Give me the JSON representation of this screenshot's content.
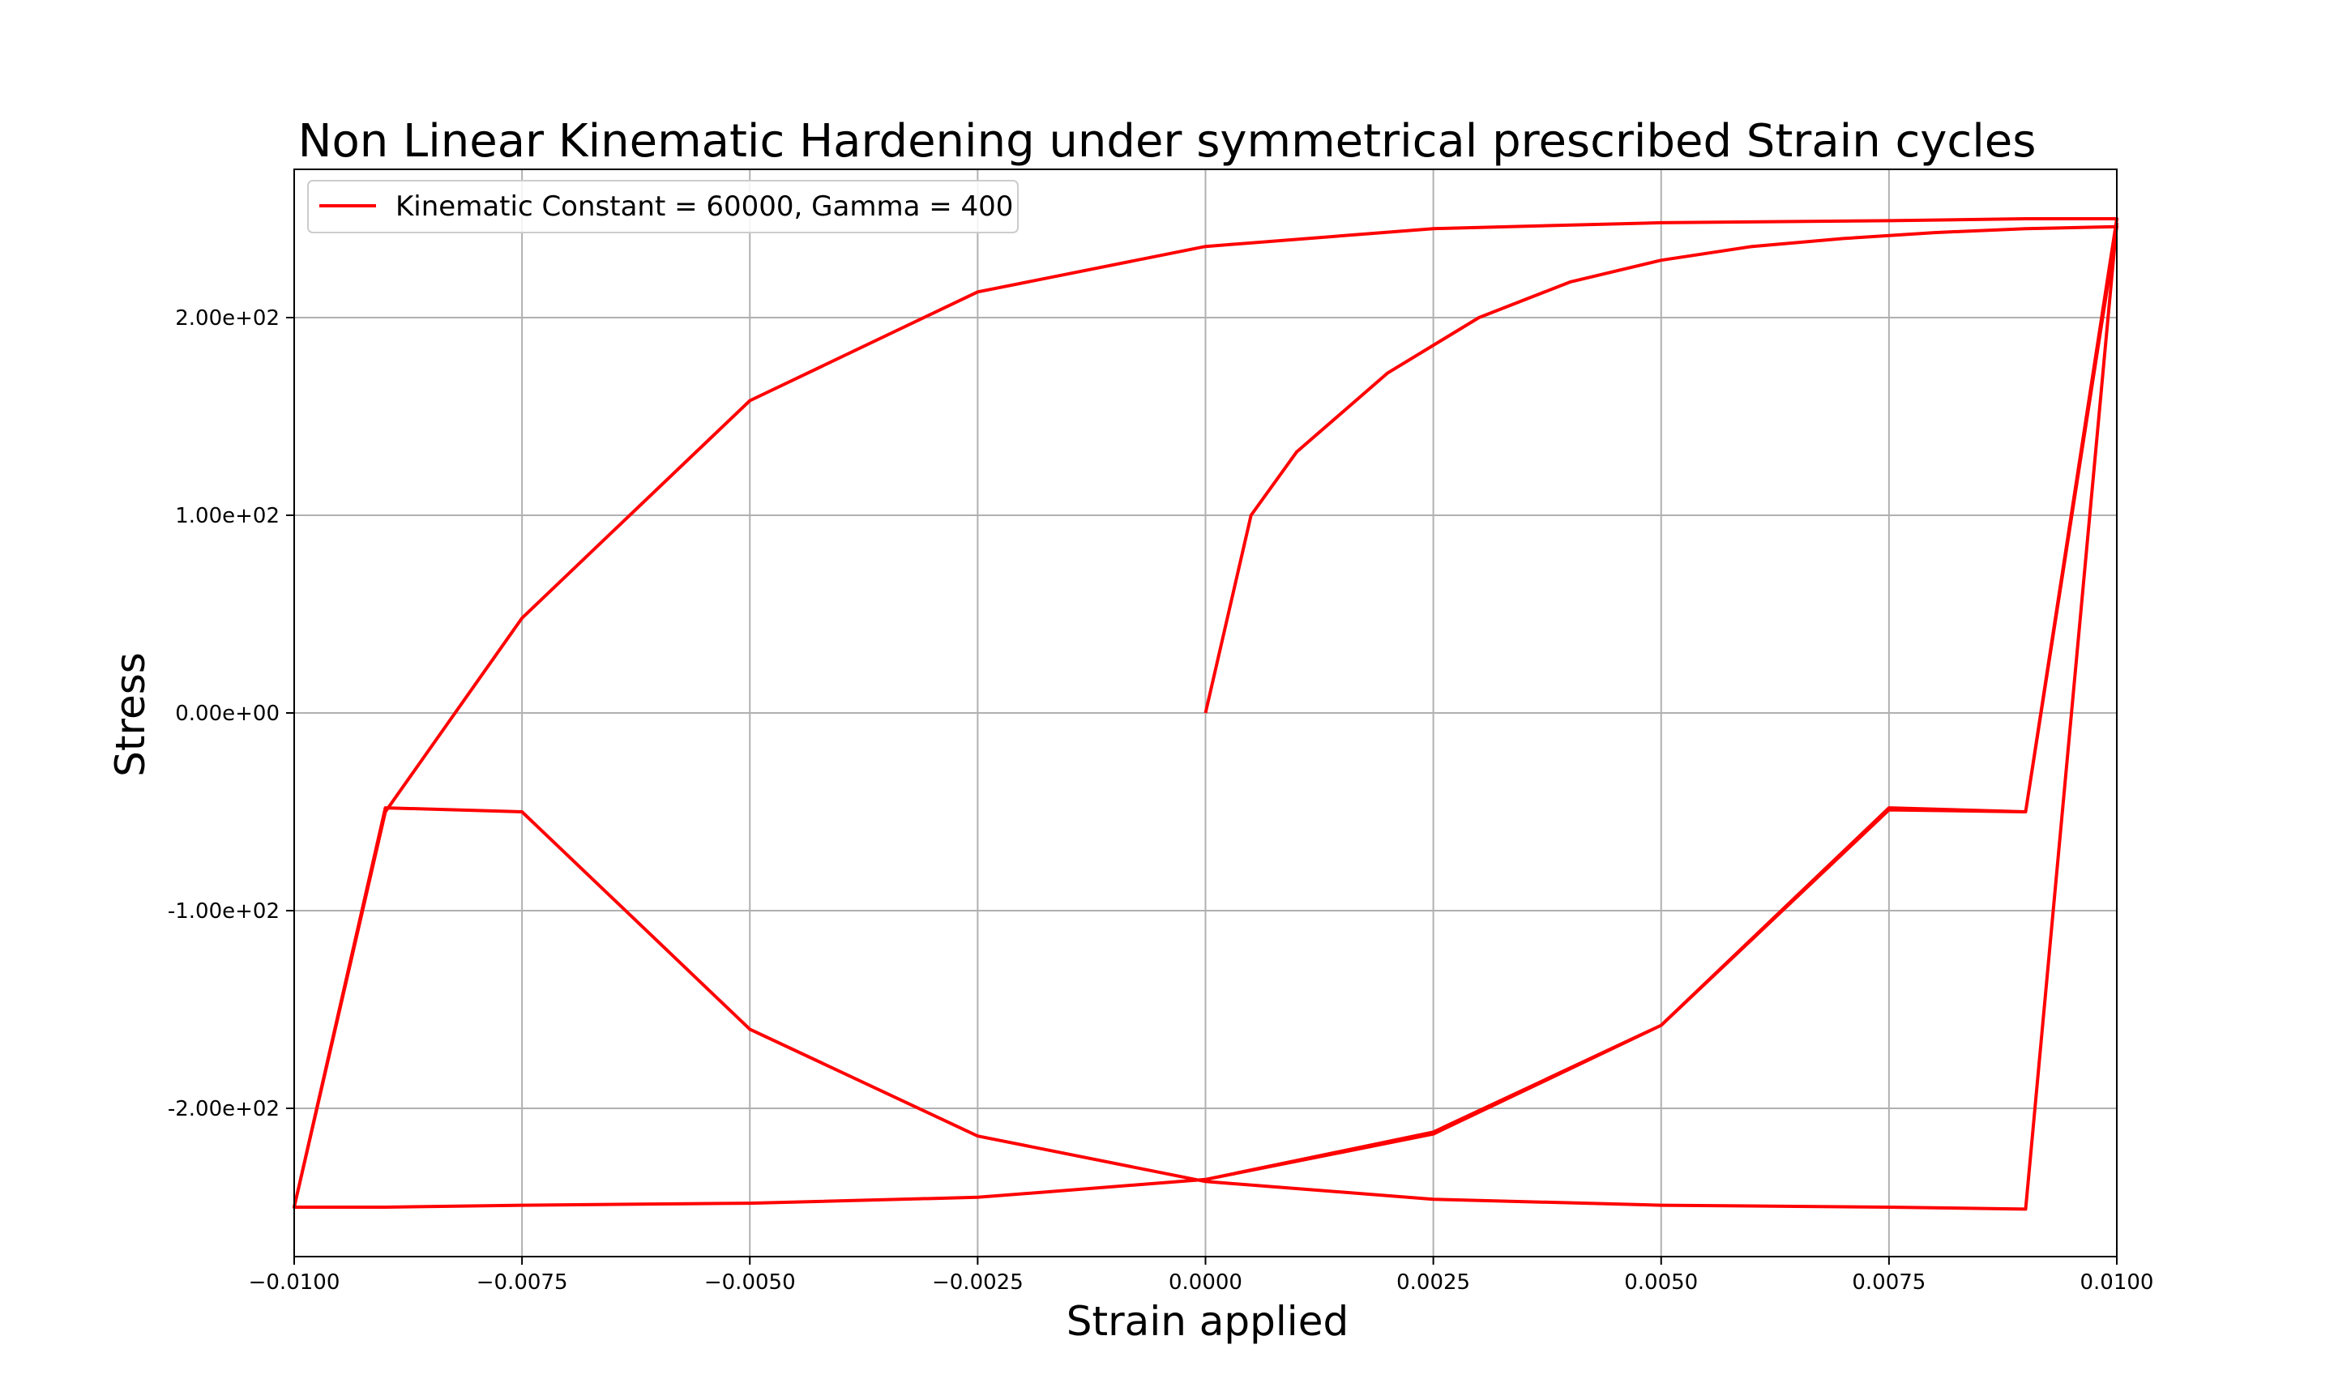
{
  "chart_data": {
    "type": "line",
    "title": "Non Linear Kinematic Hardening under symmetrical prescribed Strain cycles",
    "xlabel": "Strain applied",
    "ylabel": "Stress",
    "xlim": [
      -0.01,
      0.01
    ],
    "ylim": [
      -275,
      275
    ],
    "grid": true,
    "legend_position": "top-left",
    "x_ticks": [
      -0.01,
      -0.0075,
      -0.005,
      -0.0025,
      0.0,
      0.0025,
      0.005,
      0.0075,
      0.01
    ],
    "x_tick_labels": [
      "−0.0100",
      "−0.0075",
      "−0.0050",
      "−0.0025",
      "0.0000",
      "0.0025",
      "0.0050",
      "0.0075",
      "0.0100"
    ],
    "y_ticks": [
      -200,
      -100,
      0,
      100,
      200
    ],
    "y_tick_labels": [
      "-2.00e+02",
      "-1.00e+02",
      "0.00e+00",
      "1.00e+02",
      "2.00e+02"
    ],
    "series": [
      {
        "name": "Kinematic Constant = 60000, Gamma = 400",
        "color": "#ff0000",
        "x": [
          0.0,
          0.0005,
          0.001,
          0.002,
          0.003,
          0.004,
          0.005,
          0.006,
          0.007,
          0.008,
          0.009,
          0.01,
          0.009,
          0.0075,
          0.005,
          0.0025,
          0.0,
          -0.0025,
          -0.005,
          -0.0075,
          -0.009,
          -0.01,
          -0.009,
          -0.0075,
          -0.005,
          -0.0025,
          0.0,
          0.0025,
          0.005,
          0.0075,
          0.009,
          0.01,
          0.009,
          0.0075,
          0.005,
          0.0025,
          0.0,
          -0.0025,
          -0.005,
          -0.0075,
          -0.009,
          -0.01,
          -0.009,
          -0.0075,
          -0.005,
          -0.0025,
          0.0,
          0.0025,
          0.005,
          0.0075,
          0.009,
          0.01
        ],
        "y": [
          0,
          100,
          132,
          172,
          200,
          218,
          229,
          236,
          240,
          243,
          245,
          246,
          -50,
          -49,
          -158,
          -212,
          -236,
          -245,
          -248,
          -249,
          -250,
          -250,
          -50,
          48,
          158,
          213,
          236,
          245,
          248,
          249,
          250,
          250,
          -50,
          -48,
          -158,
          -213,
          -236,
          -245,
          -248,
          -249,
          -250,
          -250,
          -48,
          -50,
          -160,
          -214,
          -237,
          -246,
          -249,
          -250,
          -251,
          248
        ]
      }
    ]
  }
}
